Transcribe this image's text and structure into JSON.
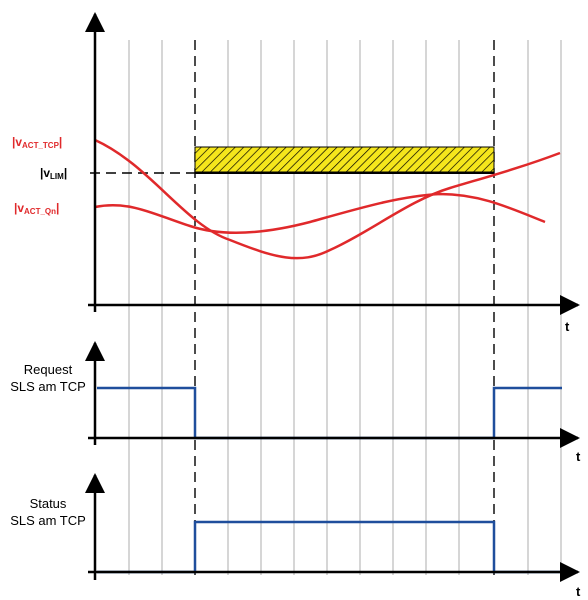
{
  "colors": {
    "axis": "#000000",
    "grid": "#c8c8c8",
    "curve": "#e0292b",
    "signal": "#1f4e9c",
    "hatch_fill": "#f5e61c",
    "red_label": "#e0292b"
  },
  "top_chart": {
    "labels": {
      "v_act_tcp": {
        "prefix": "|v",
        "sub": "ACT_TCP",
        "suffix": "|"
      },
      "v_lim": {
        "prefix": "|v",
        "sub": "LIM",
        "suffix": "|"
      },
      "v_act_qn": {
        "prefix": "|v",
        "sub": "ACT_Qn",
        "suffix": "|"
      }
    },
    "t_label": "t"
  },
  "request_chart": {
    "label_line1": "Request",
    "label_line2": "SLS am TCP",
    "t_label": "t"
  },
  "status_chart": {
    "label_line1": "Status",
    "label_line2": "SLS am TCP",
    "t_label": "t"
  }
}
